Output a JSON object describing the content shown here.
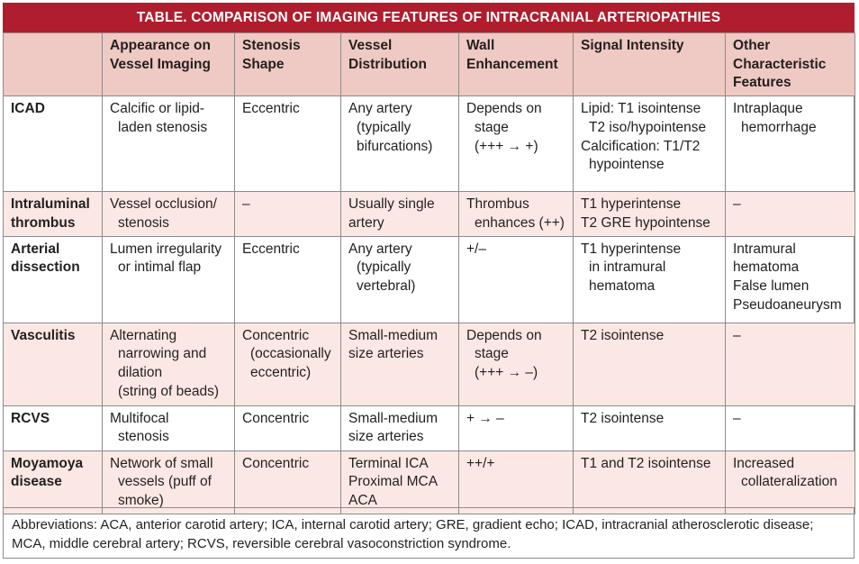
{
  "title": "TABLE. COMPARISON OF IMAGING FEATURES OF INTRACRANIAL ARTERIOPATHIES",
  "headers": [
    [],
    [
      "Appearance on",
      "Vessel Imaging"
    ],
    [
      "Stenosis",
      "Shape"
    ],
    [
      "Vessel",
      "Distribution"
    ],
    [
      "Wall",
      "Enhancement"
    ],
    [
      "Signal Intensity"
    ],
    [
      "Other",
      "Characteristic",
      "Features"
    ]
  ],
  "rows": [
    {
      "name": "icad",
      "cells": [
        [
          "ICAD"
        ],
        [
          "Calcific or lipid-",
          "laden stenosis"
        ],
        [
          "Eccentric"
        ],
        [
          "Any artery",
          "(typically",
          "bifurcations)"
        ],
        [
          "Depends on",
          "stage",
          "(+++ → +)"
        ],
        [
          "Lipid: T1 isointense",
          "T2 iso/hypointense",
          "Calcification: T1/T2",
          "hypointense"
        ],
        [
          "Intraplaque",
          "hemorrhage"
        ]
      ]
    },
    {
      "name": "intraluminal-thrombus",
      "cells": [
        [
          "Intraluminal",
          "thrombus"
        ],
        [
          "Vessel occlusion/",
          "stenosis"
        ],
        [
          "–"
        ],
        [
          "Usually single",
          "artery"
        ],
        [
          "Thrombus",
          "enhances (++)"
        ],
        [
          "T1 hyperintense",
          "T2 GRE hypointense"
        ],
        [
          "–"
        ]
      ]
    },
    {
      "name": "arterial-dissection",
      "cells": [
        [
          "Arterial",
          "dissection"
        ],
        [
          "Lumen irregularity",
          "or intimal flap"
        ],
        [
          "Eccentric"
        ],
        [
          "Any artery",
          "(typically",
          "vertebral)"
        ],
        [
          "+/–"
        ],
        [
          "T1 hyperintense",
          "in intramural",
          "hematoma"
        ],
        [
          "Intramural",
          "hematoma",
          "False lumen",
          "Pseudoaneurysm"
        ]
      ]
    },
    {
      "name": "vasculitis",
      "cells": [
        [
          "Vasculitis"
        ],
        [
          "Alternating",
          "narrowing and",
          "dilation",
          "(string of beads)"
        ],
        [
          "Concentric",
          "(occasionally",
          "eccentric)"
        ],
        [
          "Small-medium",
          "size arteries"
        ],
        [
          "Depends on",
          "stage",
          "(+++ → –)"
        ],
        [
          "T2 isointense"
        ],
        [
          "–"
        ]
      ]
    },
    {
      "name": "rcvs",
      "cells": [
        [
          "RCVS"
        ],
        [
          "Multifocal",
          "stenosis"
        ],
        [
          "Concentric"
        ],
        [
          "Small-medium",
          "size arteries"
        ],
        [
          "+ → –"
        ],
        [
          "T2 isointense"
        ],
        [
          "–"
        ]
      ]
    },
    {
      "name": "moyamoya-disease",
      "cells": [
        [
          "Moyamoya",
          "disease"
        ],
        [
          "Network of small",
          "vessels (puff of",
          "smoke)"
        ],
        [
          "Concentric"
        ],
        [
          "Terminal ICA",
          "Proximal MCA",
          "ACA"
        ],
        [
          "++/+"
        ],
        [
          "T1 and T2 isointense"
        ],
        [
          "Increased",
          "collateralization"
        ]
      ]
    }
  ],
  "footnote": [
    "Abbreviations: ACA, anterior carotid artery; ICA, internal carotid artery; GRE, gradient echo; ICAD, intracranial atherosclerotic disease;",
    "MCA, middle cerebral artery; RCVS, reversible cerebral vasoconstriction syndrome."
  ]
}
